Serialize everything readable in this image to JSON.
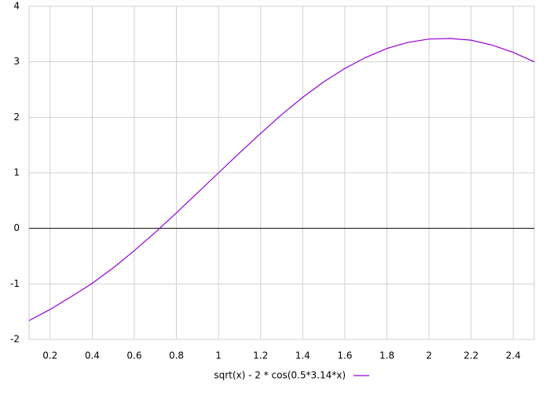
{
  "chart_data": {
    "type": "line",
    "x": [
      0.1,
      0.2,
      0.3,
      0.4,
      0.5,
      0.6,
      0.7,
      0.8,
      0.9,
      1.0,
      1.1,
      1.2,
      1.3,
      1.4,
      1.5,
      1.6,
      1.7,
      1.8,
      1.9,
      2.0,
      2.1,
      2.2,
      2.3,
      2.4,
      2.5
    ],
    "series": [
      {
        "name": "sqrt(x) - 2 * cos(0.5*3.14*x)",
        "color": "#9400d3",
        "values": [
          -1.66,
          -1.46,
          -1.23,
          -0.99,
          -0.71,
          -0.4,
          -0.07,
          0.28,
          0.64,
          1.0,
          1.36,
          1.71,
          2.05,
          2.36,
          2.64,
          2.88,
          3.08,
          3.24,
          3.35,
          3.41,
          3.42,
          3.39,
          3.3,
          3.17,
          3.0
        ]
      }
    ],
    "xlim": [
      0.1,
      2.5
    ],
    "ylim": [
      -2,
      4
    ],
    "xticks": [
      0.2,
      0.4,
      0.6,
      0.8,
      1,
      1.2,
      1.4,
      1.6,
      1.8,
      2,
      2.2,
      2.4
    ],
    "yticks": [
      -2,
      -1,
      0,
      1,
      2,
      3,
      4
    ],
    "grid": true,
    "legend": "bottom"
  }
}
